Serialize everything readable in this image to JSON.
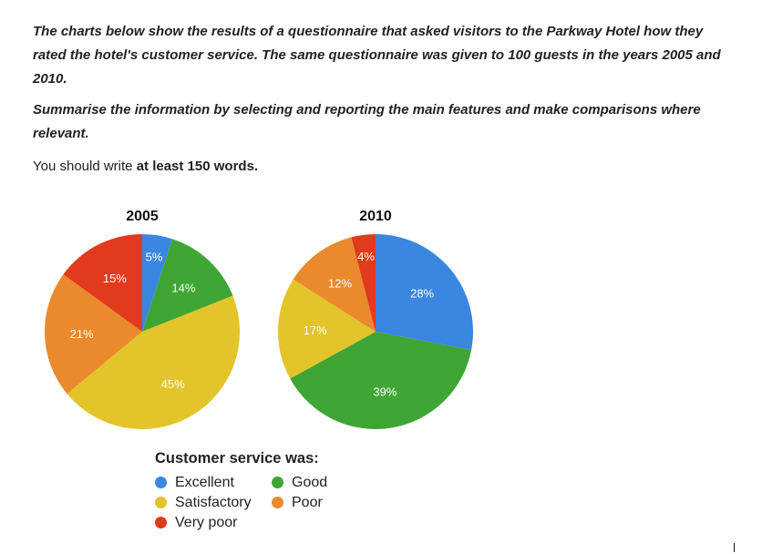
{
  "task": {
    "prompt": "The charts below show the results of a questionnaire that asked visitors to the Parkway Hotel how they rated the hotel's customer service. The same questionnaire was given to 100 guests in the years 2005 and 2010.",
    "instruction": "Summarise the information by selecting and reporting the main features and make comparisons where relevant.",
    "note_prefix": "You should write ",
    "note_bold": "at least 150 words."
  },
  "colors": {
    "Excellent": "#3a86e0",
    "Good": "#3fa535",
    "Satisfactory": "#e3c42a",
    "Poor": "#ea8a2c",
    "Very poor": "#e23a1c"
  },
  "chart_data": [
    {
      "type": "pie",
      "title": "2005",
      "categories": [
        "Excellent",
        "Good",
        "Satisfactory",
        "Poor",
        "Very poor"
      ],
      "values": [
        5,
        14,
        45,
        21,
        15
      ],
      "labels": [
        "5%",
        "14%",
        "45%",
        "21%",
        "15%"
      ]
    },
    {
      "type": "pie",
      "title": "2010",
      "categories": [
        "Excellent",
        "Good",
        "Satisfactory",
        "Poor",
        "Very poor"
      ],
      "values": [
        28,
        39,
        17,
        12,
        4
      ],
      "labels": [
        "28%",
        "39%",
        "17%",
        "12%",
        "4%"
      ]
    }
  ],
  "legend": {
    "title": "Customer service was:",
    "items": [
      {
        "label": "Excellent",
        "key": "Excellent"
      },
      {
        "label": "Good",
        "key": "Good"
      },
      {
        "label": "Satisfactory",
        "key": "Satisfactory"
      },
      {
        "label": "Poor",
        "key": "Poor"
      },
      {
        "label": "Very poor",
        "key": "Very poor"
      }
    ]
  }
}
